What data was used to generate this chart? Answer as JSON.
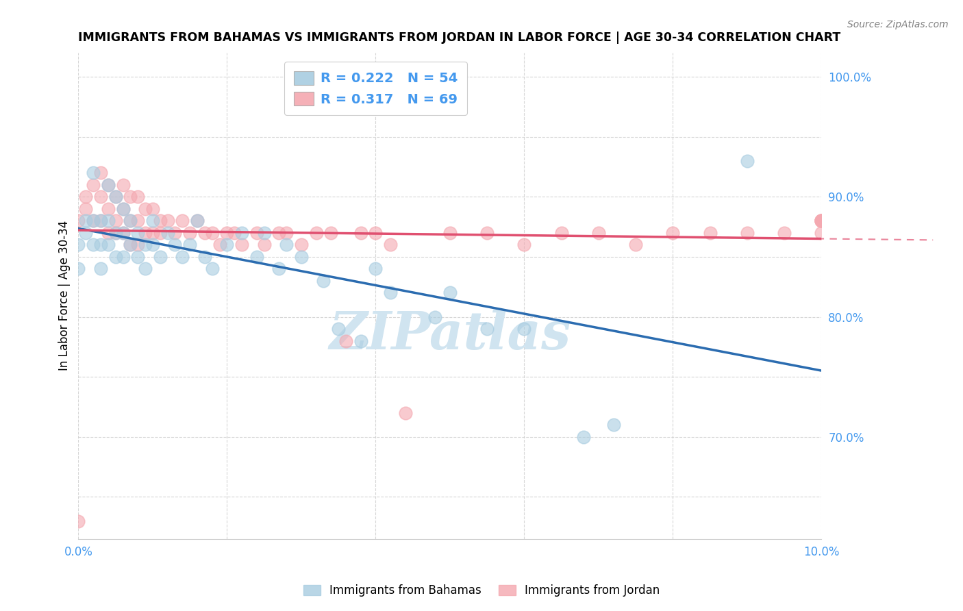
{
  "title": "IMMIGRANTS FROM BAHAMAS VS IMMIGRANTS FROM JORDAN IN LABOR FORCE | AGE 30-34 CORRELATION CHART",
  "source": "Source: ZipAtlas.com",
  "ylabel": "In Labor Force | Age 30-34",
  "xlim": [
    0.0,
    0.1
  ],
  "ylim": [
    0.615,
    1.02
  ],
  "blue_color": "#a8cce0",
  "pink_color": "#f4a8b0",
  "blue_line_color": "#2b6cb0",
  "pink_line_color": "#e05070",
  "watermark_color": "#d0e4f0",
  "legend_R_blue": "0.222",
  "legend_N_blue": "54",
  "legend_R_pink": "0.317",
  "legend_N_pink": "69",
  "blue_scatter_x": [
    0.0,
    0.0,
    0.001,
    0.001,
    0.002,
    0.002,
    0.002,
    0.003,
    0.003,
    0.003,
    0.004,
    0.004,
    0.004,
    0.005,
    0.005,
    0.005,
    0.006,
    0.006,
    0.006,
    0.007,
    0.007,
    0.008,
    0.008,
    0.009,
    0.009,
    0.01,
    0.01,
    0.011,
    0.012,
    0.013,
    0.014,
    0.015,
    0.016,
    0.017,
    0.018,
    0.02,
    0.022,
    0.024,
    0.025,
    0.027,
    0.028,
    0.03,
    0.033,
    0.035,
    0.038,
    0.04,
    0.042,
    0.048,
    0.05,
    0.055,
    0.06,
    0.068,
    0.072,
    0.09
  ],
  "blue_scatter_y": [
    0.84,
    0.86,
    0.88,
    0.87,
    0.92,
    0.88,
    0.86,
    0.88,
    0.86,
    0.84,
    0.91,
    0.88,
    0.86,
    0.9,
    0.87,
    0.85,
    0.89,
    0.87,
    0.85,
    0.88,
    0.86,
    0.87,
    0.85,
    0.86,
    0.84,
    0.88,
    0.86,
    0.85,
    0.87,
    0.86,
    0.85,
    0.86,
    0.88,
    0.85,
    0.84,
    0.86,
    0.87,
    0.85,
    0.87,
    0.84,
    0.86,
    0.85,
    0.83,
    0.79,
    0.78,
    0.84,
    0.82,
    0.8,
    0.82,
    0.79,
    0.79,
    0.7,
    0.71,
    0.93
  ],
  "pink_scatter_x": [
    0.0,
    0.0,
    0.001,
    0.001,
    0.002,
    0.002,
    0.003,
    0.003,
    0.003,
    0.004,
    0.004,
    0.004,
    0.005,
    0.005,
    0.005,
    0.006,
    0.006,
    0.006,
    0.007,
    0.007,
    0.007,
    0.008,
    0.008,
    0.008,
    0.009,
    0.009,
    0.01,
    0.01,
    0.011,
    0.011,
    0.012,
    0.013,
    0.014,
    0.015,
    0.016,
    0.017,
    0.018,
    0.019,
    0.02,
    0.021,
    0.022,
    0.024,
    0.025,
    0.027,
    0.028,
    0.03,
    0.032,
    0.034,
    0.036,
    0.038,
    0.04,
    0.042,
    0.044,
    0.05,
    0.055,
    0.06,
    0.065,
    0.07,
    0.075,
    0.08,
    0.085,
    0.09,
    0.095,
    0.1,
    0.1,
    0.1,
    0.1,
    0.1,
    0.1
  ],
  "pink_scatter_y": [
    0.88,
    0.63,
    0.89,
    0.9,
    0.91,
    0.88,
    0.92,
    0.9,
    0.88,
    0.91,
    0.89,
    0.87,
    0.9,
    0.88,
    0.87,
    0.91,
    0.89,
    0.87,
    0.9,
    0.88,
    0.86,
    0.9,
    0.88,
    0.86,
    0.89,
    0.87,
    0.89,
    0.87,
    0.88,
    0.87,
    0.88,
    0.87,
    0.88,
    0.87,
    0.88,
    0.87,
    0.87,
    0.86,
    0.87,
    0.87,
    0.86,
    0.87,
    0.86,
    0.87,
    0.87,
    0.86,
    0.87,
    0.87,
    0.78,
    0.87,
    0.87,
    0.86,
    0.72,
    0.87,
    0.87,
    0.86,
    0.87,
    0.87,
    0.86,
    0.87,
    0.87,
    0.87,
    0.87,
    0.88,
    0.88,
    0.87,
    0.88,
    0.88,
    0.88
  ]
}
